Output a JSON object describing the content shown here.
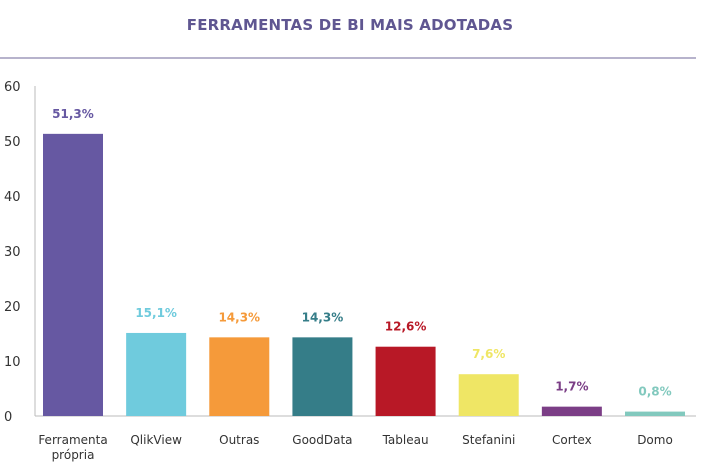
{
  "chart_data": {
    "type": "bar",
    "title": "FERRAMENTAS DE BI MAIS ADOTADAS",
    "xlabel": "",
    "ylabel": "",
    "ylim": [
      0,
      60
    ],
    "yticks": [
      "0",
      "10",
      "20",
      "30",
      "40",
      "50",
      "60"
    ],
    "grid": false,
    "legend": "none",
    "categories": [
      [
        "Ferramenta",
        "própria"
      ],
      [
        "QlikView"
      ],
      [
        "Outras"
      ],
      [
        "GoodData"
      ],
      [
        "Tableau"
      ],
      [
        "Stefanini"
      ],
      [
        "Cortex"
      ],
      [
        "Domo"
      ]
    ],
    "values": [
      51.3,
      15.1,
      14.3,
      14.3,
      12.6,
      7.6,
      1.7,
      0.8
    ],
    "value_labels": [
      "51,3%",
      "15,1%",
      "14,3%",
      "14,3%",
      "12,6%",
      "7,6%",
      "1,7%",
      "0,8%"
    ],
    "colors": [
      "#6658a2",
      "#6fcbdd",
      "#f59a3a",
      "#357d88",
      "#b81826",
      "#efe665",
      "#7b3e86",
      "#82c9be"
    ],
    "title_color": "#5f5691",
    "rule_color": "#b7b3cc",
    "axis_color": "#bbbbbb"
  }
}
